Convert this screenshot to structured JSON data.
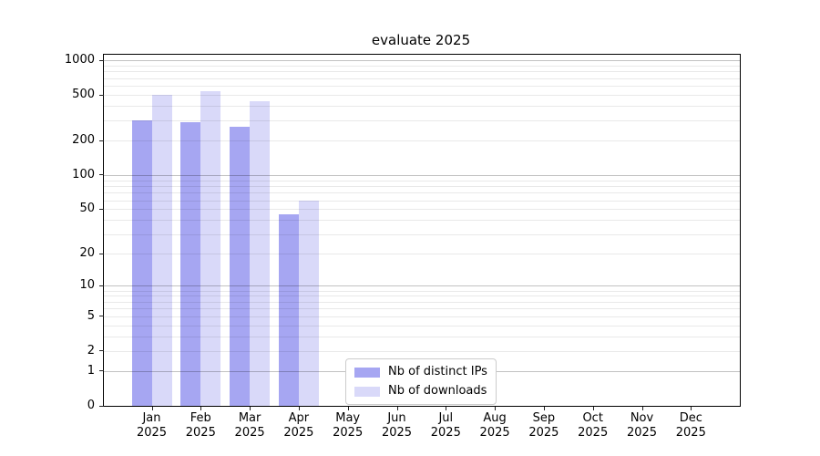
{
  "title": "evaluate 2025",
  "chart_data": {
    "type": "bar",
    "title": "evaluate 2025",
    "yscale": "symlog (position ~ log10(1+value))",
    "ylim": [
      0,
      1150
    ],
    "grid": "horizontal major+minor",
    "legend_position": "lower center",
    "ytick_values": [
      0,
      1,
      2,
      5,
      10,
      20,
      50,
      100,
      200,
      500,
      1000
    ],
    "ytick_labels": [
      "0",
      "1",
      "2",
      "5",
      "10",
      "20",
      "50",
      "100",
      "200",
      "500",
      "1000"
    ],
    "major_grid_values": [
      1,
      10,
      100,
      1000
    ],
    "minor_grid_values": [
      2,
      3,
      4,
      5,
      6,
      7,
      8,
      9,
      20,
      30,
      40,
      50,
      60,
      70,
      80,
      90,
      200,
      300,
      400,
      500,
      600,
      700,
      800,
      900
    ],
    "categories": [
      "Jan 2025",
      "Feb 2025",
      "Mar 2025",
      "Apr 2025",
      "May 2025",
      "Jun 2025",
      "Jul 2025",
      "Aug 2025",
      "Sep 2025",
      "Oct 2025",
      "Nov 2025",
      "Dec 2025"
    ],
    "x_tick_labels": [
      "Jan\n2025",
      "Feb\n2025",
      "Mar\n2025",
      "Apr\n2025",
      "May\n2025",
      "Jun\n2025",
      "Jul\n2025",
      "Aug\n2025",
      "Sep\n2025",
      "Oct\n2025",
      "Nov\n2025",
      "Dec\n2025"
    ],
    "series": [
      {
        "name": "Nb of distinct IPs",
        "color": "#a6a6f2",
        "values": [
          300,
          290,
          265,
          45,
          0,
          0,
          0,
          0,
          0,
          0,
          0,
          0
        ]
      },
      {
        "name": "Nb of downloads",
        "color": "#d9d9f9",
        "values": [
          500,
          535,
          440,
          60,
          0,
          0,
          0,
          0,
          0,
          0,
          0,
          0
        ]
      }
    ]
  }
}
